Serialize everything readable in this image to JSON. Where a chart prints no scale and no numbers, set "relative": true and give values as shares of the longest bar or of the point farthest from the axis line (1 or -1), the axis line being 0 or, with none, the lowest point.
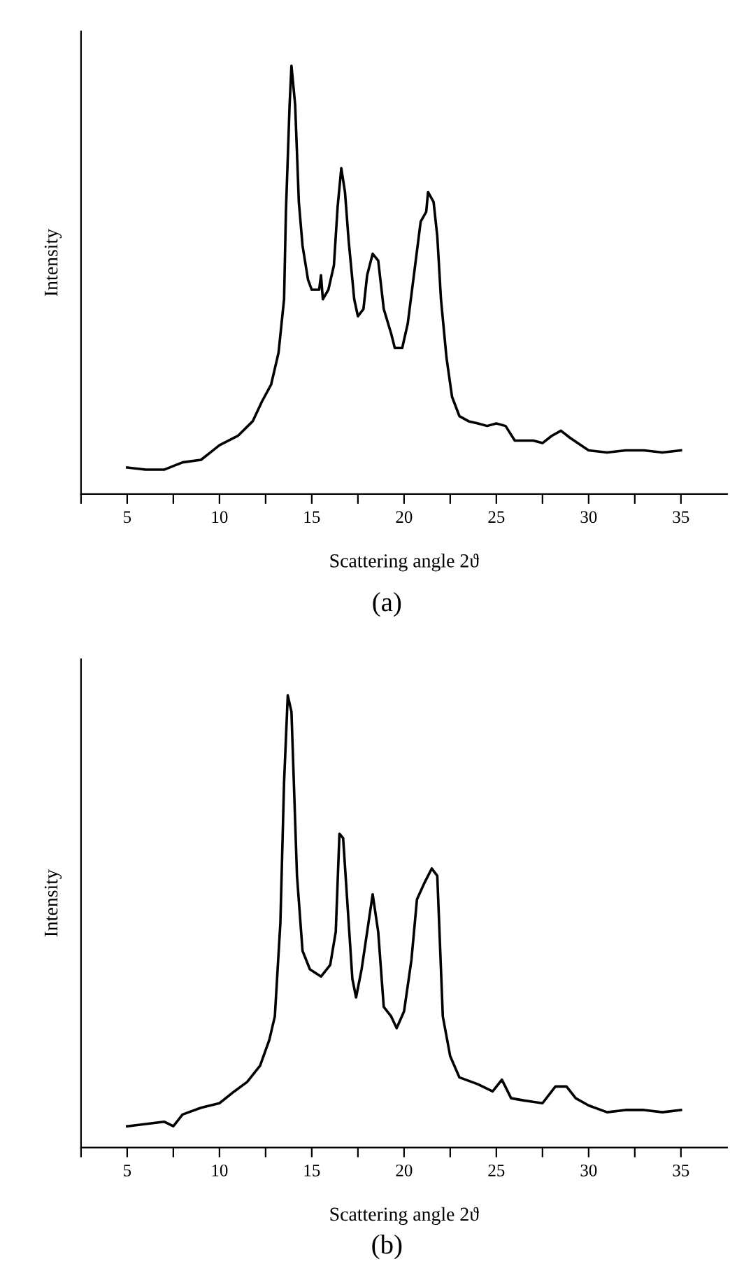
{
  "chart_data": [
    {
      "type": "line",
      "relative": true,
      "xlabel": "Scattering angle 2ϑ",
      "ylabel": "Intensity",
      "annotations": [
        "(a)"
      ],
      "xlim": [
        2.5,
        37.5
      ],
      "xticks": [
        {
          "value": 2.5,
          "label": null
        },
        5,
        {
          "value": 7.5,
          "label": null
        },
        10,
        {
          "value": 12.5,
          "label": null
        },
        15,
        {
          "value": 17.5,
          "label": null
        },
        20,
        {
          "value": 22.5,
          "label": null
        },
        25,
        {
          "value": 27.5,
          "label": null
        },
        30,
        {
          "value": 32.5,
          "label": null
        },
        35
      ],
      "grid": false,
      "legend": false,
      "tick_labels": "x",
      "line_style": "solid",
      "marker": "none",
      "series": [
        {
          "color": "#000000",
          "x": [
            5.0,
            6.0,
            7.0,
            8.0,
            9.0,
            9.5,
            10.0,
            11.0,
            11.8,
            12.3,
            12.8,
            13.2,
            13.5,
            13.6,
            13.8,
            13.9,
            14.1,
            14.3,
            14.5,
            14.8,
            15.0,
            15.4,
            15.5,
            15.6,
            15.9,
            16.2,
            16.4,
            16.6,
            16.8,
            17.0,
            17.3,
            17.5,
            17.8,
            18.0,
            18.3,
            18.6,
            18.9,
            19.3,
            19.5,
            19.9,
            20.2,
            20.5,
            20.9,
            21.2,
            21.3,
            21.6,
            21.8,
            22.0,
            22.3,
            22.6,
            23.0,
            23.5,
            24.0,
            24.5,
            25.0,
            25.5,
            26.0,
            26.5,
            27.0,
            27.5,
            28.0,
            28.5,
            29.0,
            30.0,
            31.0,
            32.0,
            33.0,
            34.0,
            35.0
          ],
          "values": [
            0.062,
            0.057,
            0.057,
            0.074,
            0.08,
            0.097,
            0.114,
            0.136,
            0.17,
            0.216,
            0.256,
            0.33,
            0.455,
            0.659,
            0.909,
            1.0,
            0.909,
            0.682,
            0.58,
            0.5,
            0.477,
            0.477,
            0.511,
            0.455,
            0.477,
            0.534,
            0.67,
            0.761,
            0.705,
            0.591,
            0.455,
            0.415,
            0.432,
            0.511,
            0.561,
            0.545,
            0.432,
            0.375,
            0.341,
            0.341,
            0.398,
            0.5,
            0.636,
            0.659,
            0.705,
            0.682,
            0.602,
            0.455,
            0.318,
            0.227,
            0.182,
            0.17,
            0.165,
            0.159,
            0.165,
            0.159,
            0.125,
            0.125,
            0.125,
            0.119,
            0.136,
            0.148,
            0.131,
            0.102,
            0.097,
            0.102,
            0.102,
            0.097,
            0.102
          ]
        }
      ]
    },
    {
      "type": "line",
      "relative": true,
      "xlabel": "Scattering angle 2ϑ",
      "ylabel": "Intensity",
      "annotations": [
        "(b)"
      ],
      "xlim": [
        2.5,
        37.5
      ],
      "xticks": [
        {
          "value": 2.5,
          "label": null
        },
        5,
        {
          "value": 7.5,
          "label": null
        },
        10,
        {
          "value": 12.5,
          "label": null
        },
        15,
        {
          "value": 17.5,
          "label": null
        },
        20,
        {
          "value": 22.5,
          "label": null
        },
        25,
        {
          "value": 27.5,
          "label": null
        },
        30,
        {
          "value": 32.5,
          "label": null
        },
        35
      ],
      "grid": false,
      "legend": false,
      "tick_labels": "x",
      "line_style": "solid",
      "marker": "none",
      "series": [
        {
          "color": "#000000",
          "x": [
            5.0,
            6.0,
            7.0,
            7.5,
            8.0,
            9.0,
            10.0,
            10.8,
            11.5,
            12.2,
            12.7,
            13.0,
            13.3,
            13.5,
            13.7,
            13.9,
            14.2,
            14.5,
            14.9,
            15.5,
            16.0,
            16.3,
            16.5,
            16.7,
            17.0,
            17.2,
            17.4,
            17.7,
            18.0,
            18.3,
            18.6,
            18.9,
            19.3,
            19.6,
            20.0,
            20.4,
            20.7,
            21.1,
            21.5,
            21.8,
            22.1,
            22.5,
            23.0,
            24.0,
            24.8,
            25.3,
            25.8,
            26.5,
            27.5,
            28.2,
            28.8,
            29.3,
            30.0,
            31.0,
            32.0,
            33.0,
            34.0,
            35.0
          ],
          "values": [
            0.047,
            0.052,
            0.057,
            0.047,
            0.073,
            0.088,
            0.098,
            0.124,
            0.145,
            0.181,
            0.238,
            0.29,
            0.497,
            0.808,
            1.0,
            0.964,
            0.601,
            0.435,
            0.394,
            0.378,
            0.404,
            0.477,
            0.694,
            0.684,
            0.497,
            0.373,
            0.332,
            0.394,
            0.477,
            0.56,
            0.477,
            0.311,
            0.29,
            0.264,
            0.301,
            0.415,
            0.549,
            0.585,
            0.617,
            0.601,
            0.29,
            0.202,
            0.155,
            0.14,
            0.124,
            0.15,
            0.109,
            0.104,
            0.098,
            0.135,
            0.135,
            0.109,
            0.093,
            0.078,
            0.083,
            0.083,
            0.078,
            0.083
          ]
        }
      ]
    }
  ]
}
